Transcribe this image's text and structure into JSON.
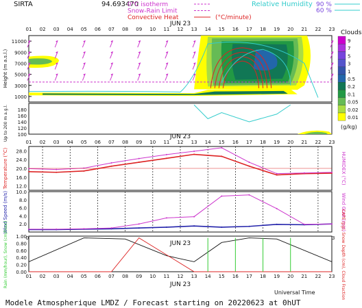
{
  "header": {
    "site": "SIRTA",
    "coord": "94.693470",
    "legend_left": [
      {
        "label": "0°C isotherm",
        "color": "#cc33cc",
        "dash": true
      },
      {
        "label": "Snow-Rain Limit",
        "color": "#cc33cc",
        "dash": true
      },
      {
        "label": "Convective Heat",
        "color": "#dd2222",
        "dash": false
      }
    ],
    "conv_unit": "(°C/minute)",
    "rh_label": "Relative Humidity",
    "rh_levels": [
      "90 %",
      "60 %"
    ],
    "rh_color": "#33cccc"
  },
  "date_label": "JUN 23",
  "hours": [
    "01",
    "02",
    "03",
    "04",
    "05",
    "06",
    "07",
    "08",
    "09",
    "10",
    "11",
    "12",
    "13",
    "14",
    "15",
    "16",
    "17",
    "18",
    "19",
    "20",
    "21",
    "22",
    "23"
  ],
  "footer": "Modele Atmospherique LMDZ / Forecast starting on 20220623 at 0hUT",
  "x_title": "Universal Time",
  "chart_data": [
    {
      "type": "heatmap",
      "title": "",
      "ylabel": "Height (m a.s.l.)",
      "yticks": [
        "11000",
        "9000",
        "7000",
        "5000",
        "3000",
        "1000"
      ],
      "ylim": [
        0,
        12000
      ],
      "colorbar_title": "Clouds",
      "colorbar_unit": "(g/kg)",
      "colorbar_levels": [
        "9",
        "7",
        "5",
        "3",
        "1",
        "0.5",
        "0.2",
        "0.1",
        "0.05",
        "0.02",
        "0.01"
      ],
      "colorbar_colors": [
        "#cc00cc",
        "#aa33dd",
        "#7744dd",
        "#5555cc",
        "#3355aa",
        "#2266aa",
        "#117755",
        "#229944",
        "#66bb55",
        "#aadd44",
        "#ffff00"
      ]
    },
    {
      "type": "heatmap",
      "title": "",
      "ylabel": "Up to 200 m a.g.l.",
      "yticks": [
        "180",
        "160",
        "140",
        "120",
        "100"
      ],
      "ylim": [
        100,
        200
      ]
    },
    {
      "type": "line",
      "xlabel": "",
      "ylabel": "Temperature (°C)",
      "y2label": "HUMIDEX (°C)",
      "yticks": [
        "28.0",
        "24.0",
        "20.0",
        "16.0",
        "12.0"
      ],
      "ylim": [
        10,
        30
      ],
      "series": [
        {
          "name": "Temperature",
          "color": "#dd2222",
          "x": [
            1,
            3,
            5,
            7,
            9,
            11,
            13,
            15,
            17,
            19,
            21,
            23
          ],
          "values": [
            18.5,
            18.2,
            18.8,
            21.0,
            22.8,
            24.6,
            26.4,
            25.5,
            21.0,
            17.0,
            17.6,
            17.8
          ]
        },
        {
          "name": "HUMIDEX",
          "color": "#cc33cc",
          "x": [
            1,
            3,
            5,
            7,
            9,
            11,
            13,
            15,
            17,
            19,
            21,
            23
          ],
          "values": [
            19.9,
            19.5,
            20.1,
            22.5,
            24.5,
            26.3,
            27.8,
            29.4,
            22.8,
            17.6,
            17.9,
            18.2
          ]
        }
      ]
    },
    {
      "type": "line",
      "ylabel": "Wind Speed (m/s)",
      "y2label": "Wind Gust (m/s)",
      "yticks": [
        "10.0",
        "8.0",
        "6.0",
        "4.0",
        "2.0"
      ],
      "ylim": [
        0,
        10
      ],
      "series": [
        {
          "name": "Wind Speed",
          "color": "#2222aa",
          "x": [
            1,
            3,
            5,
            7,
            9,
            11,
            13,
            15,
            17,
            19,
            21,
            23
          ],
          "values": [
            0.6,
            0.6,
            0.7,
            0.8,
            1.0,
            1.2,
            1.5,
            1.2,
            1.4,
            1.9,
            1.8,
            2.0
          ]
        },
        {
          "name": "Wind Gust",
          "color": "#cc33cc",
          "x": [
            1,
            3,
            5,
            7,
            9,
            11,
            13,
            15,
            17,
            19,
            21,
            23
          ],
          "values": [
            0.7,
            0.7,
            0.8,
            1.0,
            2.0,
            3.5,
            3.8,
            8.9,
            9.2,
            5.8,
            1.9,
            2.0
          ]
        }
      ]
    },
    {
      "type": "line",
      "ylabel": "Rain (mm/hour), Snow (cm/hour)",
      "y2label": "CAPE (J/g), Snow Depth (cm), Cloud Fraction",
      "yticks": [
        "1.00",
        "0.80",
        "0.60",
        "0.40",
        "0.20",
        "0.00"
      ],
      "ylim": [
        0,
        1
      ],
      "series": [
        {
          "name": "Cloud Fraction",
          "color": "#111111",
          "x": [
            1,
            5,
            8,
            11,
            13,
            15,
            17,
            19,
            23
          ],
          "values": [
            0.28,
            0.95,
            0.92,
            0.45,
            0.28,
            0.82,
            0.95,
            0.92,
            0.28
          ]
        },
        {
          "name": "CAPE",
          "color": "#dd2222",
          "x": [
            1,
            5,
            7,
            9,
            13,
            15,
            17,
            19,
            23
          ],
          "values": [
            0.0,
            0.0,
            0.0,
            0.95,
            0.0,
            0.0,
            0.0,
            0.0,
            0.0
          ]
        },
        {
          "name": "Rain",
          "color": "#33cc33",
          "x": [
            14,
            16,
            18,
            20
          ],
          "values": [
            0.95,
            0.95,
            0.95,
            0.95
          ]
        }
      ]
    }
  ]
}
